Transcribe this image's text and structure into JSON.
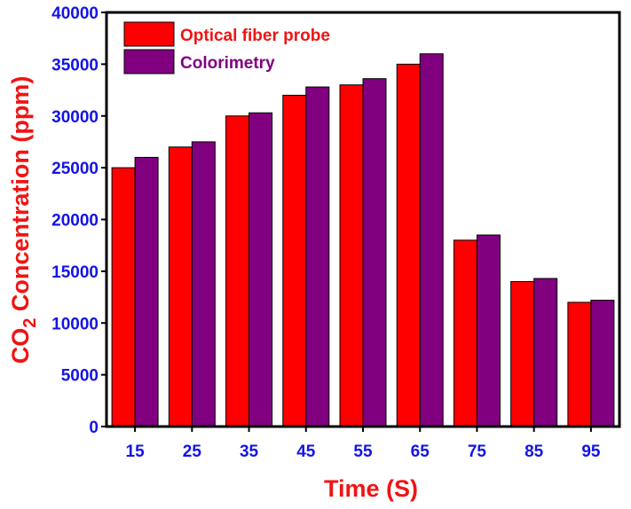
{
  "chart_data": {
    "type": "bar",
    "categories": [
      "15",
      "25",
      "35",
      "45",
      "55",
      "65",
      "75",
      "85",
      "95"
    ],
    "series": [
      {
        "name": "Optical fiber probe",
        "values": [
          25000,
          27000,
          30000,
          32000,
          33000,
          35000,
          18000,
          14000,
          12000
        ],
        "color": "#ff0000"
      },
      {
        "name": "Colorimetry",
        "values": [
          26000,
          27500,
          30300,
          32800,
          33600,
          36000,
          18500,
          14300,
          12200
        ],
        "color": "#800080"
      }
    ],
    "xlabel": "Time (S)",
    "ylabel_prefix": "CO",
    "ylabel_subscript": "2",
    "ylabel_suffix": " Concentration (ppm)",
    "ylim": [
      0,
      40000
    ],
    "yticks": [
      "0",
      "5000",
      "10000",
      "15000",
      "20000",
      "25000",
      "30000",
      "35000",
      "40000"
    ],
    "grid": false,
    "legend_position": "top-left",
    "colors": {
      "axis_text": "#1414e6",
      "axis_title": "#f01414",
      "legend_text_1": "#f01414",
      "legend_text_2": "#800080"
    }
  }
}
